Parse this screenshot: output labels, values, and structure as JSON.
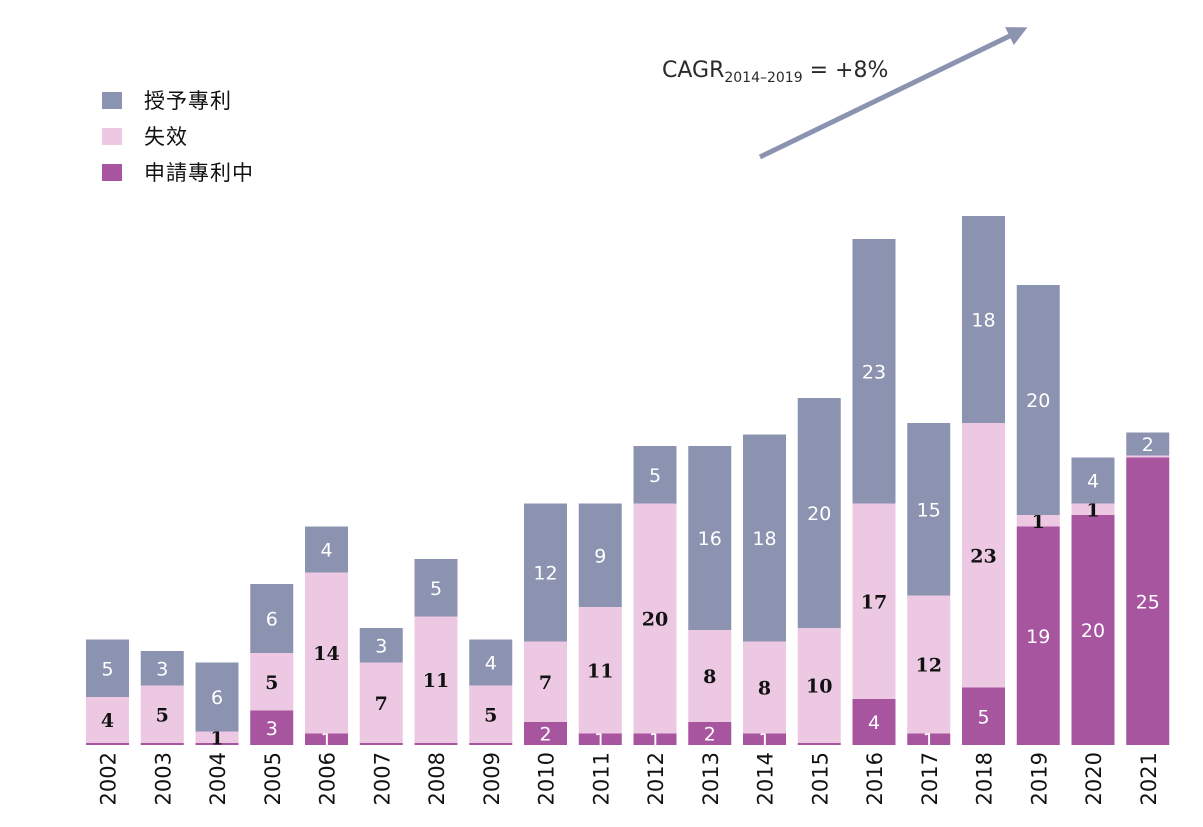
{
  "chart_data": {
    "type": "bar",
    "stacked": true,
    "categories": [
      "2002",
      "2003",
      "2004",
      "2005",
      "2006",
      "2007",
      "2008",
      "2009",
      "2010",
      "2011",
      "2012",
      "2013",
      "2014",
      "2015",
      "2016",
      "2017",
      "2018",
      "2019",
      "2020",
      "2021"
    ],
    "series": [
      {
        "name": "申請專利中",
        "color": "#a855a0",
        "values": [
          0,
          0,
          0,
          3,
          1,
          0,
          0,
          0,
          2,
          1,
          1,
          2,
          1,
          0,
          4,
          1,
          5,
          19,
          20,
          25
        ],
        "labels": [
          "",
          "",
          "",
          "3",
          "1",
          "",
          "",
          "",
          "2",
          "1",
          "1",
          "2",
          "1",
          "",
          "4",
          "1",
          "5",
          "19",
          "20",
          "25"
        ]
      },
      {
        "name": "失效",
        "color": "#ecc8e2",
        "values": [
          4,
          5,
          1,
          5,
          14,
          7,
          11,
          5,
          7,
          11,
          20,
          8,
          8,
          10,
          17,
          12,
          23,
          1,
          1,
          0
        ],
        "labels": [
          "4",
          "5",
          "1",
          "5",
          "14",
          "7",
          "11",
          "5",
          "7",
          "11",
          "20",
          "8",
          "8",
          "10",
          "17",
          "12",
          "23",
          "1",
          "1",
          ""
        ]
      },
      {
        "name": "授予專利",
        "color": "#8b93b1",
        "values": [
          5,
          3,
          6,
          6,
          4,
          3,
          5,
          4,
          12,
          9,
          5,
          16,
          18,
          20,
          23,
          15,
          18,
          20,
          4,
          2
        ],
        "labels": [
          "5",
          "3",
          "6",
          "6",
          "4",
          "3",
          "5",
          "4",
          "12",
          "9",
          "5",
          "16",
          "18",
          "20",
          "23",
          "15",
          "18",
          "20",
          "4",
          "2"
        ]
      }
    ],
    "annotation": {
      "text_main": "CAGR",
      "text_sub": "2014–2019",
      "text_tail": " = +8%"
    },
    "legend_position": "top-left"
  },
  "legend": [
    {
      "label": "授予專利",
      "color": "#8b93b1"
    },
    {
      "label": "失效",
      "color": "#ecc8e2"
    },
    {
      "label": "申請專利中",
      "color": "#a855a0"
    }
  ]
}
